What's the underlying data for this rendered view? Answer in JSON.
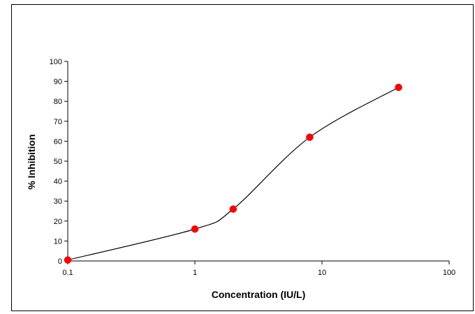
{
  "chart_data": {
    "type": "scatter",
    "title": "",
    "xlabel": "Concentration (IU/L)",
    "ylabel": "% Inhibition",
    "x_scale": "log",
    "xlim": [
      0.1,
      100
    ],
    "ylim": [
      0,
      100
    ],
    "x_ticks": [
      0.1,
      1,
      10,
      100
    ],
    "x_tick_labels": [
      "0.1",
      "1",
      "10",
      "100"
    ],
    "y_ticks": [
      0,
      10,
      20,
      30,
      40,
      50,
      60,
      70,
      80,
      90,
      100
    ],
    "y_tick_labels": [
      "0",
      "10",
      "20",
      "30",
      "40",
      "50",
      "60",
      "70",
      "80",
      "90",
      "100"
    ],
    "grid": false,
    "legend": "none",
    "series": [
      {
        "x": [
          0.1,
          1,
          2,
          8,
          40
        ],
        "y": [
          0.5,
          16,
          26,
          62,
          87
        ],
        "marker_color": "#ff0000",
        "line": "smooth",
        "line_color": "#000000"
      }
    ]
  }
}
